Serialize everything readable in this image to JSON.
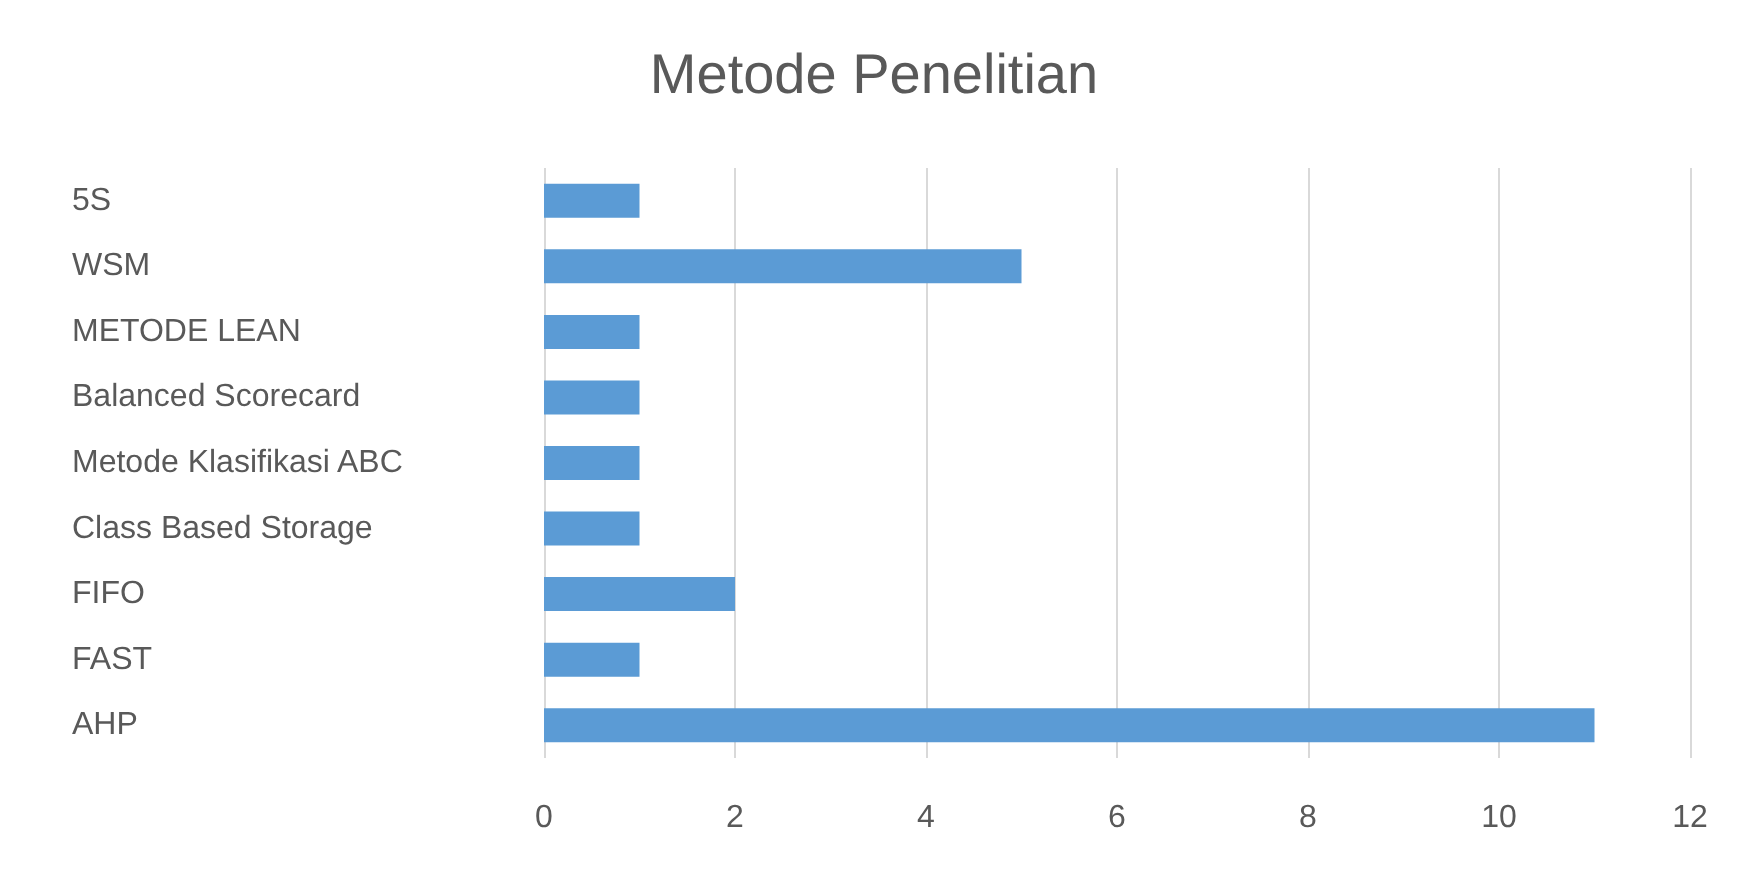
{
  "chart_data": {
    "type": "bar",
    "orientation": "horizontal",
    "title": "Metode Penelitian",
    "categories": [
      "5S",
      "WSM",
      "METODE LEAN",
      "Balanced Scorecard",
      "Metode Klasifikasi ABC",
      "Class Based Storage",
      "FIFO",
      "FAST",
      "AHP"
    ],
    "values": [
      1,
      5,
      1,
      1,
      1,
      1,
      2,
      1,
      11
    ],
    "color": "#5b9bd5",
    "xlim": [
      0,
      12
    ],
    "xticks": [
      0,
      2,
      4,
      6,
      8,
      10,
      12
    ],
    "grid": "x"
  }
}
